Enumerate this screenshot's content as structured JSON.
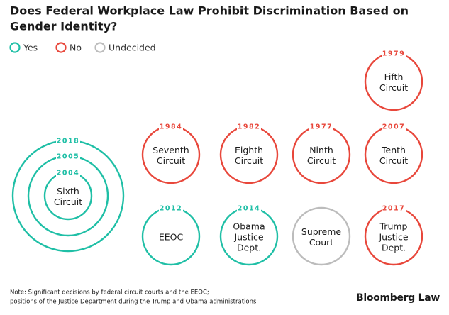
{
  "header": {
    "title": [
      "Does Federal Workplace Law Prohibit Discrimination Based on",
      "Gender Identity?"
    ]
  },
  "legend": [
    {
      "label": "Yes",
      "color": "#1fbfa6"
    },
    {
      "label": "No",
      "color": "#e8473b"
    },
    {
      "label": "Undecided",
      "color": "#bcbcbc"
    }
  ],
  "nodes": [
    {
      "label": [
        "Fifth",
        "Circuit"
      ],
      "years": [
        "1979"
      ],
      "color": "#e8473b"
    },
    {
      "label": [
        "Sixth",
        "Circuit"
      ],
      "years": [
        "2004",
        "2005",
        "2018"
      ],
      "color": "#1fbfa6"
    },
    {
      "label": [
        "Seventh",
        "Circuit"
      ],
      "years": [
        "1984"
      ],
      "color": "#e8473b"
    },
    {
      "label": [
        "Eighth",
        "Circuit"
      ],
      "years": [
        "1982"
      ],
      "color": "#e8473b"
    },
    {
      "label": [
        "Ninth",
        "Circuit"
      ],
      "years": [
        "1977"
      ],
      "color": "#e8473b"
    },
    {
      "label": [
        "Tenth",
        "Circuit"
      ],
      "years": [
        "2007"
      ],
      "color": "#e8473b"
    },
    {
      "label": [
        "EEOC"
      ],
      "years": [
        "2012"
      ],
      "color": "#1fbfa6"
    },
    {
      "label": [
        "Obama",
        "Justice",
        "Dept."
      ],
      "years": [
        "2014"
      ],
      "color": "#1fbfa6"
    },
    {
      "label": [
        "Supreme",
        "Court"
      ],
      "years": [],
      "color": "#bcbcbc"
    },
    {
      "label": [
        "Trump",
        "Justice",
        "Dept."
      ],
      "years": [
        "2017"
      ],
      "color": "#e8473b"
    }
  ],
  "note": [
    "Note: Significant decisions by federal circuit courts and the EEOC;",
    "positions of the Justice Department during the Trump and Obama administrations"
  ],
  "brand": "Bloomberg Law"
}
